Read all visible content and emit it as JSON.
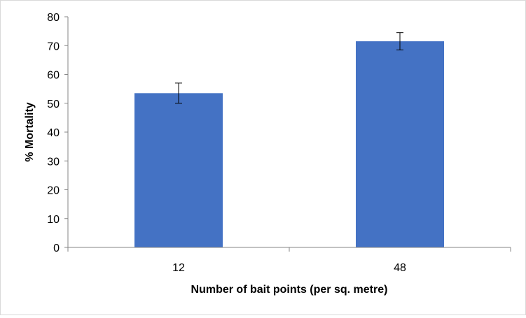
{
  "chart_data": {
    "type": "bar",
    "categories": [
      "12",
      "48"
    ],
    "values": [
      53.5,
      71.5
    ],
    "error_bars": [
      3.5,
      3.0
    ],
    "xlabel": "Number of bait points (per sq. metre)",
    "ylabel": "% Mortality",
    "ylim": [
      0,
      80
    ],
    "yticks": [
      "0",
      "10",
      "20",
      "30",
      "40",
      "50",
      "60",
      "70",
      "80"
    ],
    "grid": false,
    "legend": "none",
    "colors": {
      "bar": "#4472C4",
      "axis": "#868686",
      "error_bar": "#000000"
    }
  }
}
